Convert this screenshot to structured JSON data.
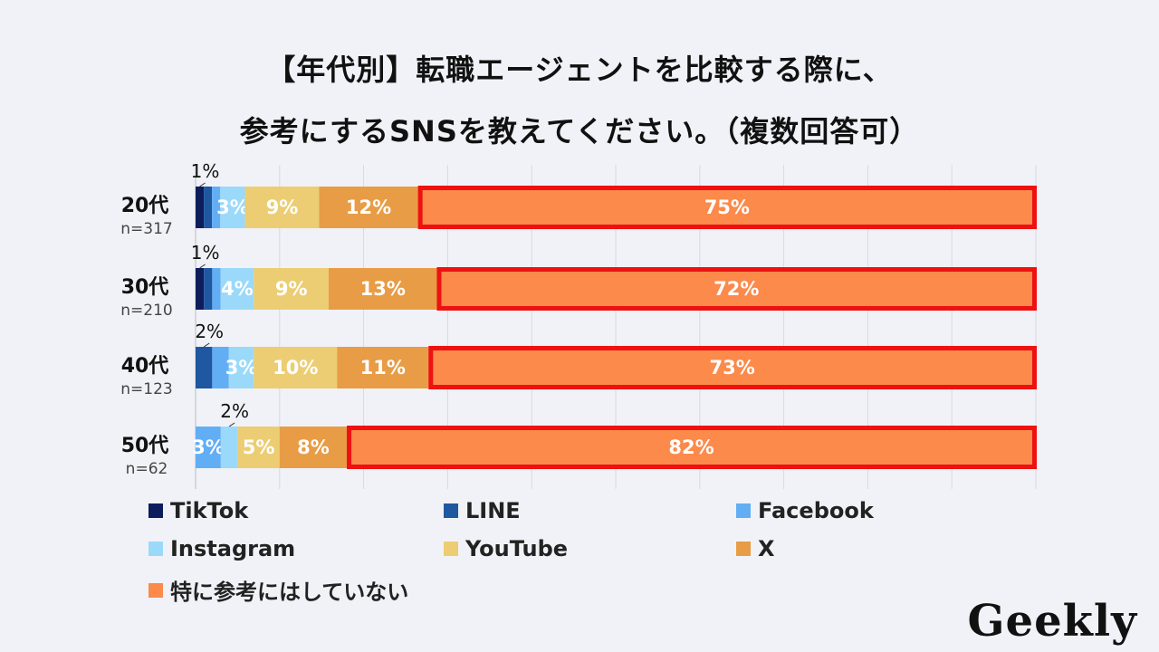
{
  "title_line1": "【年代別】転職エージェントを比較する際に、",
  "title_line2": "参考にするSNSを教えてください。（複数回答可）",
  "logo": "Geekly",
  "colors": {
    "TikTok": "#0d1d5c",
    "LINE": "#1f57a0",
    "Facebook": "#62aef5",
    "Instagram": "#9bd9fa",
    "YouTube": "#eccd73",
    "X": "#e89c45",
    "特に参考にはしていない": "#fb8a4b",
    "highlight": "#ee1111",
    "background": "#f1f2f7"
  },
  "chart_data": {
    "type": "bar",
    "orientation": "horizontal",
    "stacked": "100%",
    "categories": [
      "20代",
      "30代",
      "40代",
      "50代"
    ],
    "category_sublabels": [
      "n=317",
      "n=210",
      "n=123",
      "n=62"
    ],
    "series": [
      {
        "name": "TikTok",
        "values": [
          1,
          1,
          0,
          0
        ],
        "labels": [
          "1%",
          "1%",
          "",
          ""
        ]
      },
      {
        "name": "LINE",
        "values": [
          1,
          1,
          2,
          0
        ],
        "labels": [
          "",
          "",
          "2%",
          ""
        ]
      },
      {
        "name": "Facebook",
        "values": [
          1,
          1,
          2,
          3
        ],
        "labels": [
          "",
          "",
          "",
          "3%"
        ]
      },
      {
        "name": "Instagram",
        "values": [
          3,
          4,
          3,
          2
        ],
        "labels": [
          "3%",
          "4%",
          "3%",
          "2%"
        ]
      },
      {
        "name": "YouTube",
        "values": [
          9,
          9,
          10,
          5
        ],
        "labels": [
          "9%",
          "9%",
          "10%",
          "5%"
        ]
      },
      {
        "name": "X",
        "values": [
          12,
          13,
          11,
          8
        ],
        "labels": [
          "12%",
          "13%",
          "11%",
          "8%"
        ]
      },
      {
        "name": "特に参考にはしていない",
        "values": [
          75,
          72,
          73,
          82
        ],
        "labels": [
          "75%",
          "72%",
          "73%",
          "82%"
        ]
      }
    ],
    "highlight_series": "特に参考にはしていない",
    "grid": true,
    "legend_position": "bottom"
  }
}
